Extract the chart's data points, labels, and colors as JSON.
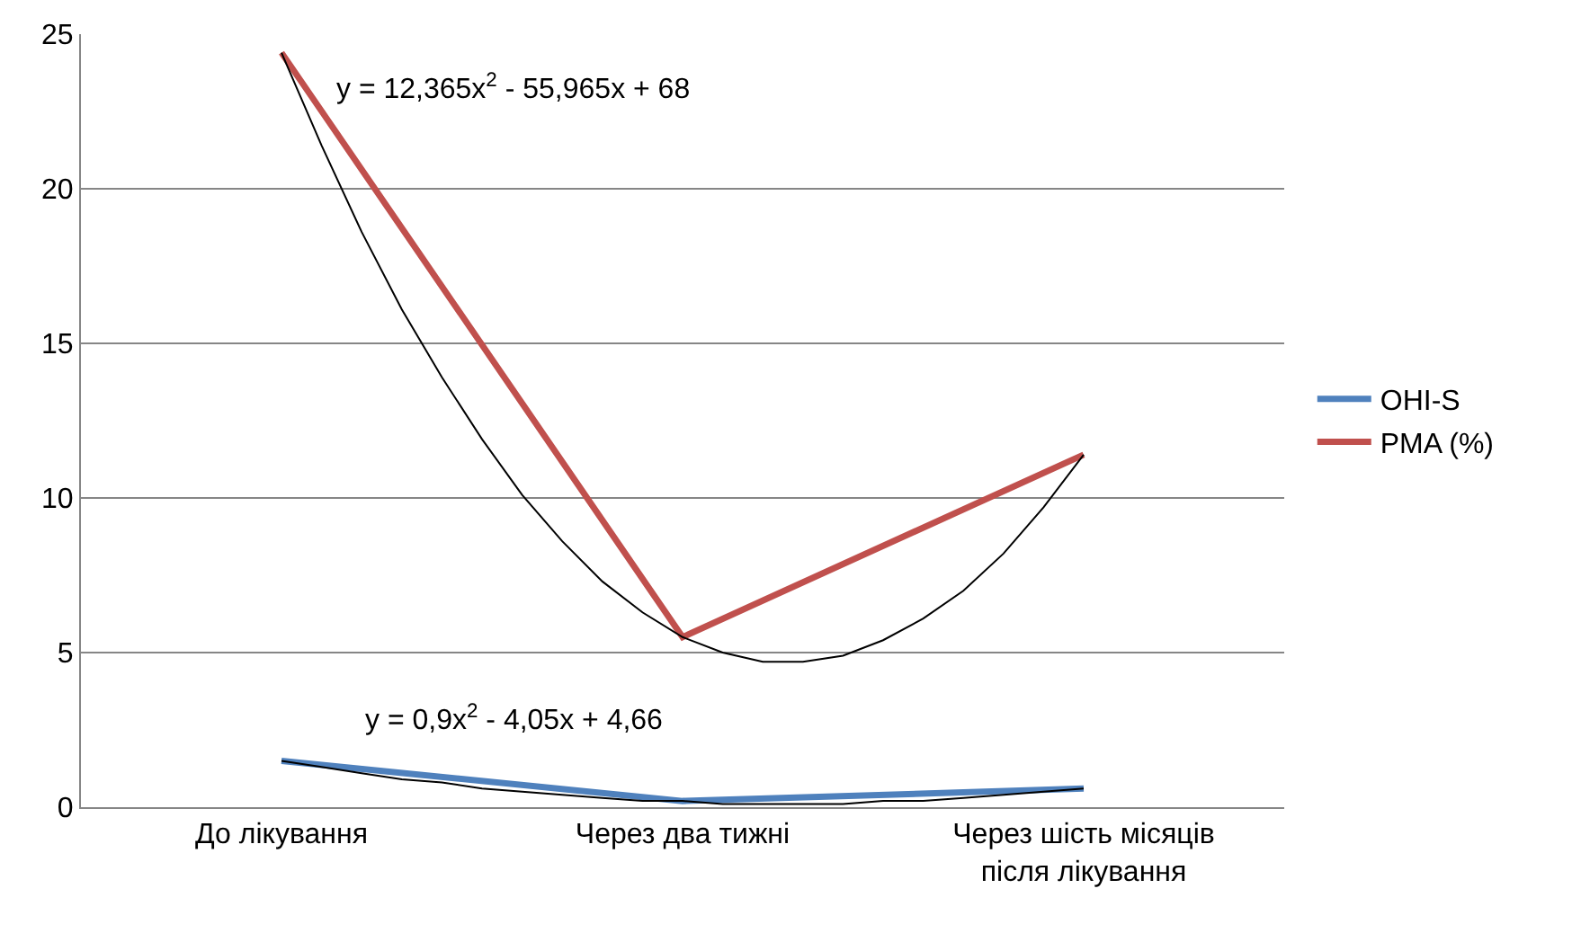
{
  "chart_data": {
    "type": "line",
    "categories": [
      "До лікування",
      null,
      null,
      null,
      null,
      null,
      null,
      null,
      null,
      null,
      "Через два тижні",
      null,
      null,
      null,
      null,
      null,
      null,
      null,
      null,
      null,
      "Через шість місяців\nпісля лікування"
    ],
    "ylim": [
      0,
      25
    ],
    "yticks": [
      0,
      5,
      10,
      15,
      20,
      25
    ],
    "grid": "y",
    "legend": "right",
    "marker": "none",
    "line_style": "solid",
    "series": [
      {
        "name": "OHI-S",
        "color": "#4f81bd",
        "x": [
          "До лікування",
          "Через два тижні",
          "Через шість місяців\nпісля лікування"
        ],
        "values": [
          1.5,
          0.2,
          0.6
        ]
      },
      {
        "name": "PMA (%)",
        "color": "#c0504d",
        "x": [
          "До лікування",
          "Через два тижні",
          "Через шість місяців\nпісля лікування"
        ],
        "values": [
          24.4,
          5.5,
          11.4
        ]
      },
      {
        "type": "line",
        "color": "#000000",
        "values": [
          24.4,
          21.4,
          18.6,
          16.1,
          13.9,
          11.9,
          10.1,
          8.6,
          7.3,
          6.3,
          5.5,
          5.0,
          4.7,
          4.7,
          4.9,
          5.4,
          6.1,
          7.0,
          8.2,
          9.7,
          11.4
        ]
      },
      {
        "type": "line",
        "color": "#000000",
        "values": [
          1.5,
          1.3,
          1.1,
          0.9,
          0.8,
          0.6,
          0.5,
          0.4,
          0.3,
          0.2,
          0.2,
          0.1,
          0.1,
          0.1,
          0.1,
          0.2,
          0.2,
          0.3,
          0.4,
          0.5,
          0.6
        ]
      }
    ],
    "annotations": [
      "y = 12,365x$^{2}$ - 55,965x + 68",
      "y = 0,9x$^{2}$ - 4,05x + 4,66"
    ]
  }
}
